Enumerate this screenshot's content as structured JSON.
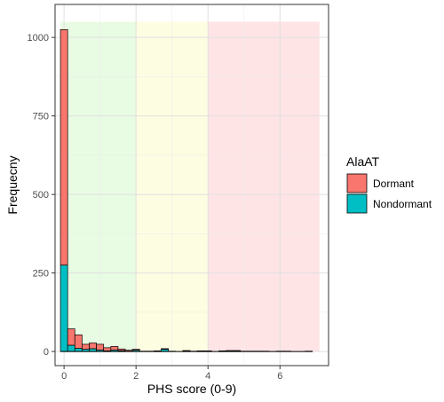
{
  "chart_data": {
    "type": "bar",
    "subtype": "stacked-histogram",
    "xlabel": "PHS score (0-9)",
    "ylabel": "Frequecny",
    "xlim": [
      -0.25,
      7.35
    ],
    "ylim": [
      -45,
      1105
    ],
    "x_ticks": [
      0,
      2,
      4,
      6
    ],
    "y_ticks": [
      0,
      250,
      500,
      750,
      1000
    ],
    "grid": true,
    "bin_width": 0.2,
    "x": [
      0.0,
      0.2,
      0.4,
      0.6,
      0.8,
      1.0,
      1.2,
      1.4,
      1.6,
      1.8,
      2.0,
      2.2,
      2.4,
      2.6,
      2.8,
      3.0,
      3.2,
      3.4,
      3.6,
      3.8,
      4.0,
      4.2,
      4.4,
      4.6,
      4.8,
      5.0,
      5.2,
      5.4,
      5.6,
      5.8,
      6.0,
      6.2,
      6.4,
      6.6,
      6.8
    ],
    "series": [
      {
        "name": "Dormant",
        "color": "#F8766D",
        "values": [
          750,
          52,
          43,
          16,
          18,
          18,
          10,
          11,
          5,
          3,
          3,
          1,
          0,
          2,
          2,
          1,
          0,
          1,
          0,
          1,
          1,
          0,
          0,
          1,
          1,
          1,
          0,
          0,
          0,
          0,
          0,
          0,
          0,
          0,
          0
        ]
      },
      {
        "name": "Nondormant",
        "color": "#00BFC4",
        "values": [
          275,
          20,
          10,
          7,
          9,
          5,
          2,
          5,
          3,
          1,
          4,
          0,
          1,
          0,
          7,
          0,
          0,
          2,
          1,
          1,
          1,
          0,
          2,
          2,
          2,
          0,
          1,
          1,
          1,
          0,
          1,
          1,
          0,
          0,
          1
        ]
      }
    ],
    "background_bands": [
      {
        "x0": -0.1,
        "x1": 2.0,
        "color": "#e8fbe3"
      },
      {
        "x0": 2.0,
        "x1": 4.0,
        "color": "#fdfde2"
      },
      {
        "x0": 4.0,
        "x1": 7.1,
        "color": "#ffe4e6"
      }
    ],
    "band_ymax": 1050,
    "legend": {
      "title": "AlaAT",
      "placement": "right",
      "entries": [
        "Dormant",
        "Nondormant"
      ]
    }
  }
}
